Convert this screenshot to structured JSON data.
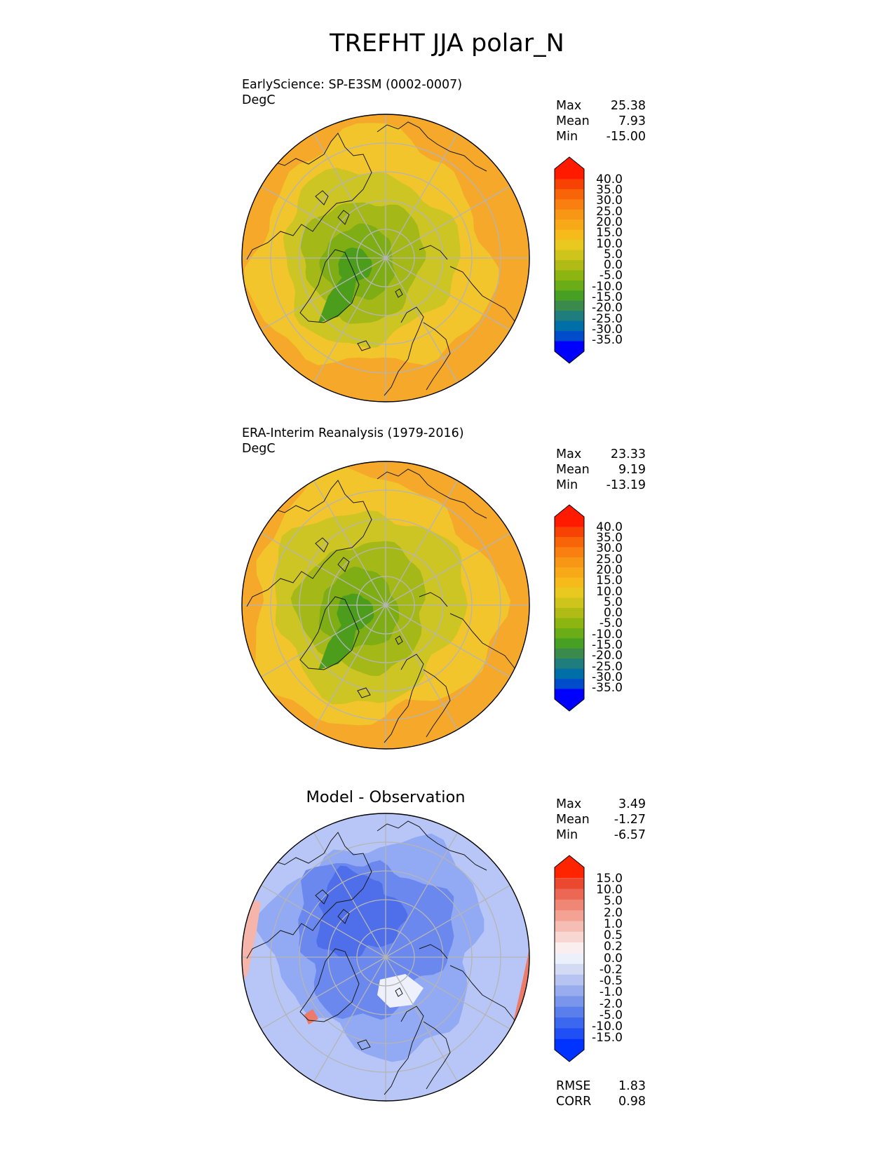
{
  "figure": {
    "title": "TREFHT JJA polar_N"
  },
  "colors": {
    "test_palette": [
      "#0000ff",
      "#004dcc",
      "#006fa8",
      "#1f7d7d",
      "#3a8a4c",
      "#47a023",
      "#6aad17",
      "#8db511",
      "#b0bc15",
      "#cec41b",
      "#e9c81f",
      "#f6ba1a",
      "#f7a918",
      "#f89615",
      "#f87f10",
      "#f86408",
      "#f84203",
      "#ff1a00"
    ],
    "diff_palette": [
      "#0033ff",
      "#2050f5",
      "#3c67ef",
      "#5a7eeb",
      "#7995ec",
      "#98acee",
      "#b7c3f0",
      "#d2daf4",
      "#ecf0fb",
      "#fbeeee",
      "#f8d6d2",
      "#f6bdb4",
      "#f4a294",
      "#f08675",
      "#ec6854",
      "#ea4930",
      "#ff2400"
    ],
    "test_fill_ramp": [
      "#f5a82a",
      "#f1c52b",
      "#ccc524",
      "#a4b817",
      "#7eae13",
      "#4d9d1c"
    ],
    "diff_fill_ramp": [
      "#ee7a6a",
      "#f6b5aa",
      "#eef1fb",
      "#b7c6f6",
      "#92a9f3",
      "#6a88ee",
      "#4f6fea"
    ]
  },
  "panels": [
    {
      "title": "EarlyScience: SP-E3SM (0002-0007)",
      "units": "DegC",
      "stats": [
        {
          "label": "Max",
          "value": "25.38"
        },
        {
          "label": "Mean",
          "value": "7.93"
        },
        {
          "label": "Min",
          "value": "-15.00"
        }
      ],
      "colorbar_ticks": [
        "40.0",
        "35.0",
        "30.0",
        "25.0",
        "20.0",
        "15.0",
        "10.0",
        "5.0",
        "0.0",
        "-5.0",
        "-10.0",
        "-15.0",
        "-20.0",
        "-25.0",
        "-30.0",
        "-35.0"
      ]
    },
    {
      "title": "ERA-Interim Reanalysis (1979-2016)",
      "units": "DegC",
      "stats": [
        {
          "label": "Max",
          "value": "23.33"
        },
        {
          "label": "Mean",
          "value": "9.19"
        },
        {
          "label": "Min",
          "value": "-13.19"
        }
      ],
      "colorbar_ticks": [
        "40.0",
        "35.0",
        "30.0",
        "25.0",
        "20.0",
        "15.0",
        "10.0",
        "5.0",
        "0.0",
        "-5.0",
        "-10.0",
        "-15.0",
        "-20.0",
        "-25.0",
        "-30.0",
        "-35.0"
      ]
    },
    {
      "title": "Model - Observation",
      "stats": [
        {
          "label": "Max",
          "value": "3.49"
        },
        {
          "label": "Mean",
          "value": "-1.27"
        },
        {
          "label": "Min",
          "value": "-6.57"
        }
      ],
      "colorbar_ticks": [
        "15.0",
        "10.0",
        "5.0",
        "2.0",
        "1.0",
        "0.5",
        "0.2",
        "0.0",
        "-0.2",
        "-0.5",
        "-1.0",
        "-2.0",
        "-5.0",
        "-10.0",
        "-15.0"
      ],
      "metrics": [
        {
          "label": "RMSE",
          "value": "1.83"
        },
        {
          "label": "CORR",
          "value": "0.98"
        }
      ]
    }
  ]
}
